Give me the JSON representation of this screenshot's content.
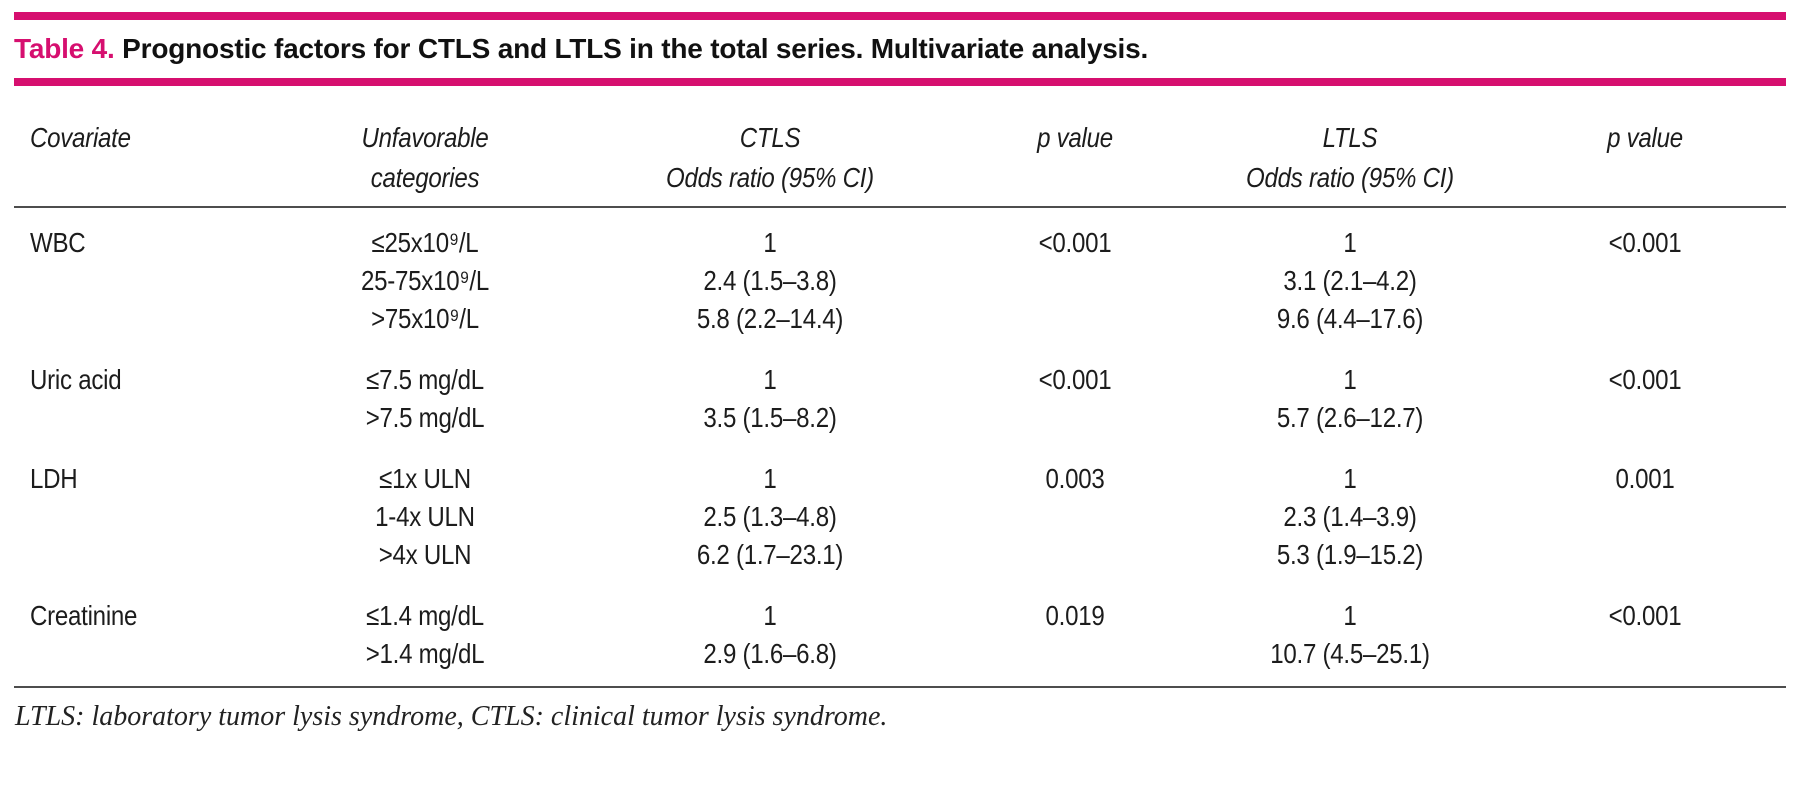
{
  "colors": {
    "accent": "#d60f6f",
    "text": "#1c1c1c",
    "rule_gray": "#4d4d4d"
  },
  "title": {
    "label": "Table 4.",
    "text": " Prognostic factors for CTLS and LTLS in the total series. Multivariate analysis."
  },
  "header": {
    "covariate": "Covariate",
    "categories_line1": "Unfavorable",
    "categories_line2": "categories",
    "ctls": "CTLS",
    "p_value_1": "p value",
    "ltls": "LTLS",
    "p_value_2": "p value",
    "odds_ratio_ctls": "Odds ratio (95% CI)",
    "odds_ratio_ltls": "Odds ratio (95% CI)"
  },
  "rows": [
    {
      "covariate": "WBC",
      "categories": [
        "≤25x10⁹/L",
        "25-75x10⁹/L",
        ">75x10⁹/L"
      ],
      "ctls_or": [
        "1",
        "2.4 (1.5–3.8)",
        "5.8 (2.2–14.4)"
      ],
      "ctls_p": "<0.001",
      "ltls_or": [
        "1",
        "3.1 (2.1–4.2)",
        "9.6 (4.4–17.6)"
      ],
      "ltls_p": "<0.001"
    },
    {
      "covariate": "Uric acid",
      "categories": [
        "≤7.5 mg/dL",
        ">7.5 mg/dL"
      ],
      "ctls_or": [
        "1",
        "3.5 (1.5–8.2)"
      ],
      "ctls_p": "<0.001",
      "ltls_or": [
        "1",
        "5.7 (2.6–12.7)"
      ],
      "ltls_p": "<0.001"
    },
    {
      "covariate": "LDH",
      "categories": [
        "≤1x ULN",
        "1-4x ULN",
        ">4x ULN"
      ],
      "ctls_or": [
        "1",
        "2.5 (1.3–4.8)",
        "6.2 (1.7–23.1)"
      ],
      "ctls_p": "0.003",
      "ltls_or": [
        "1",
        "2.3 (1.4–3.9)",
        "5.3 (1.9–15.2)"
      ],
      "ltls_p": "0.001"
    },
    {
      "covariate": "Creatinine",
      "categories": [
        "≤1.4 mg/dL",
        ">1.4 mg/dL"
      ],
      "ctls_or": [
        "1",
        "2.9 (1.6–6.8)"
      ],
      "ctls_p": "0.019",
      "ltls_or": [
        "1",
        "10.7 (4.5–25.1)"
      ],
      "ltls_p": "<0.001"
    }
  ],
  "footnote": "LTLS: laboratory tumor lysis syndrome, CTLS: clinical tumor lysis syndrome."
}
